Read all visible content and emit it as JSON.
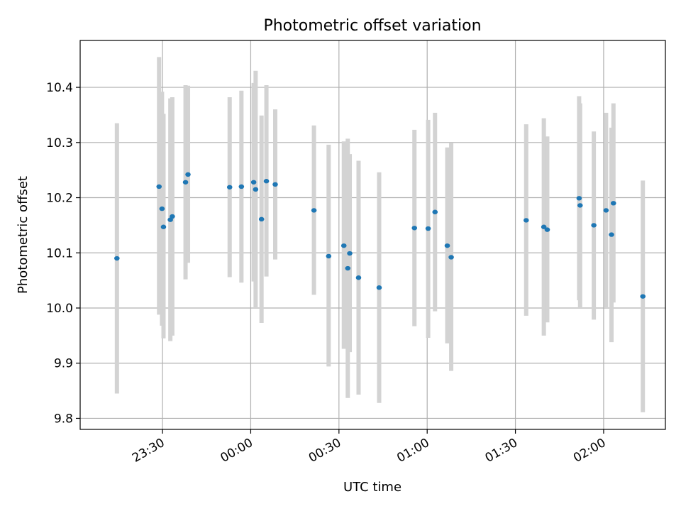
{
  "chart_data": {
    "type": "scatter",
    "title": "Photometric offset variation",
    "xlabel": "UTC time",
    "ylabel": "Photometric offset",
    "xlim": [
      "23:02",
      "02:21"
    ],
    "ylim": [
      9.78,
      10.485
    ],
    "grid": true,
    "x_ticks": [
      "23:30",
      "00:00",
      "00:30",
      "01:00",
      "01:30",
      "02:00"
    ],
    "y_ticks": [
      "9.8",
      "9.9",
      "10.0",
      "10.1",
      "10.2",
      "10.3",
      "10.4"
    ],
    "colors": {
      "point": "#1f77b4",
      "error_bar": "#d3d3d3",
      "grid": "#b0b0b0"
    },
    "points": [
      {
        "x": "23:14:30",
        "y": 10.09,
        "err_low": 9.845,
        "err_high": 10.335
      },
      {
        "x": "23:28:50",
        "y": 10.22,
        "err_low": 9.988,
        "err_high": 10.455
      },
      {
        "x": "23:29:50",
        "y": 10.18,
        "err_low": 9.968,
        "err_high": 10.392
      },
      {
        "x": "23:30:20",
        "y": 10.147,
        "err_low": 9.945,
        "err_high": 10.352
      },
      {
        "x": "23:32:40",
        "y": 10.16,
        "err_low": 9.94,
        "err_high": 10.38
      },
      {
        "x": "23:33:20",
        "y": 10.166,
        "err_low": 9.95,
        "err_high": 10.382
      },
      {
        "x": "23:37:50",
        "y": 10.228,
        "err_low": 10.052,
        "err_high": 10.404
      },
      {
        "x": "23:38:40",
        "y": 10.242,
        "err_low": 10.082,
        "err_high": 10.403
      },
      {
        "x": "23:52:50",
        "y": 10.219,
        "err_low": 10.056,
        "err_high": 10.382
      },
      {
        "x": "23:56:50",
        "y": 10.22,
        "err_low": 10.046,
        "err_high": 10.394
      },
      {
        "x": "00:01:00",
        "y": 10.228,
        "err_low": 10.048,
        "err_high": 10.408
      },
      {
        "x": "00:01:40",
        "y": 10.215,
        "err_low": 10.0,
        "err_high": 10.43
      },
      {
        "x": "00:03:40",
        "y": 10.161,
        "err_low": 9.973,
        "err_high": 10.349
      },
      {
        "x": "00:05:20",
        "y": 10.23,
        "err_low": 10.057,
        "err_high": 10.404
      },
      {
        "x": "00:08:20",
        "y": 10.224,
        "err_low": 10.088,
        "err_high": 10.36
      },
      {
        "x": "00:21:30",
        "y": 10.177,
        "err_low": 10.024,
        "err_high": 10.331
      },
      {
        "x": "00:26:30",
        "y": 10.094,
        "err_low": 9.894,
        "err_high": 10.296
      },
      {
        "x": "00:31:40",
        "y": 10.113,
        "err_low": 9.926,
        "err_high": 10.302
      },
      {
        "x": "00:33:00",
        "y": 10.072,
        "err_low": 9.837,
        "err_high": 10.307
      },
      {
        "x": "00:33:40",
        "y": 10.099,
        "err_low": 9.92,
        "err_high": 10.279
      },
      {
        "x": "00:36:40",
        "y": 10.055,
        "err_low": 9.843,
        "err_high": 10.267
      },
      {
        "x": "00:43:40",
        "y": 10.037,
        "err_low": 9.828,
        "err_high": 10.246
      },
      {
        "x": "00:55:40",
        "y": 10.145,
        "err_low": 9.967,
        "err_high": 10.323
      },
      {
        "x": "01:00:20",
        "y": 10.144,
        "err_low": 9.946,
        "err_high": 10.341
      },
      {
        "x": "01:02:40",
        "y": 10.174,
        "err_low": 9.994,
        "err_high": 10.354
      },
      {
        "x": "01:06:50",
        "y": 10.113,
        "err_low": 9.936,
        "err_high": 10.291
      },
      {
        "x": "01:08:10",
        "y": 10.092,
        "err_low": 9.886,
        "err_high": 10.299
      },
      {
        "x": "01:33:40",
        "y": 10.159,
        "err_low": 9.986,
        "err_high": 10.333
      },
      {
        "x": "01:39:40",
        "y": 10.147,
        "err_low": 9.95,
        "err_high": 10.344
      },
      {
        "x": "01:40:50",
        "y": 10.142,
        "err_low": 9.974,
        "err_high": 10.311
      },
      {
        "x": "01:51:40",
        "y": 10.199,
        "err_low": 10.014,
        "err_high": 10.384
      },
      {
        "x": "01:52:00",
        "y": 10.186,
        "err_low": 10.0,
        "err_high": 10.371
      },
      {
        "x": "01:56:40",
        "y": 10.15,
        "err_low": 9.979,
        "err_high": 10.32
      },
      {
        "x": "02:00:50",
        "y": 10.177,
        "err_low": 10.0,
        "err_high": 10.354
      },
      {
        "x": "02:02:40",
        "y": 10.133,
        "err_low": 9.938,
        "err_high": 10.327
      },
      {
        "x": "02:03:20",
        "y": 10.19,
        "err_low": 10.01,
        "err_high": 10.371
      },
      {
        "x": "02:13:20",
        "y": 10.021,
        "err_low": 9.811,
        "err_high": 10.231
      }
    ]
  }
}
